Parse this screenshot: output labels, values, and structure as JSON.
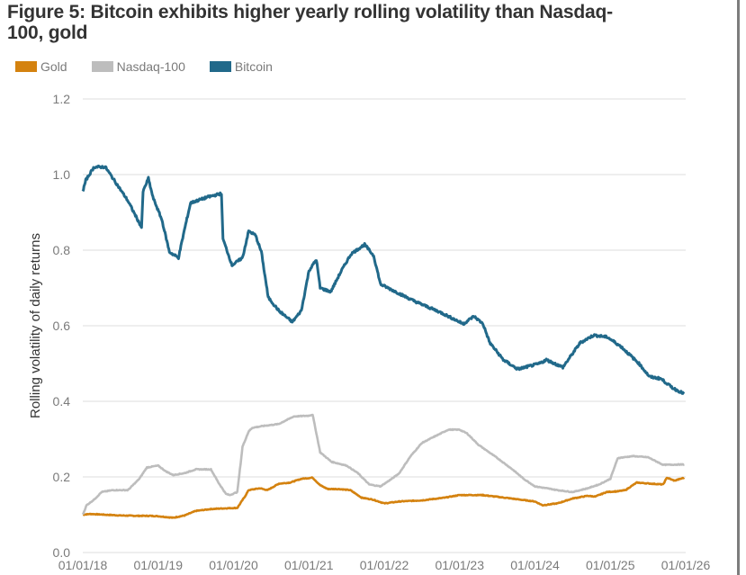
{
  "title": "Figure 5: Bitcoin exhibits higher yearly rolling volatility than Nasdaq-100, gold",
  "title_lines": [
    "Figure 5: Bitcoin exhibits higher yearly rolling volatility than Nasdaq-",
    "100, gold"
  ],
  "legend": [
    {
      "label": "Gold",
      "color": "#d4820f"
    },
    {
      "label": "Nasdaq-100",
      "color": "#bdbdbd"
    },
    {
      "label": "Bitcoin",
      "color": "#21698a"
    }
  ],
  "chart_data": {
    "type": "line",
    "title": "Figure 5: Bitcoin exhibits higher yearly rolling volatility than Nasdaq-100, gold",
    "xlabel": "",
    "ylabel": "Rolling volatility of daily returns",
    "ylim": [
      0.0,
      1.2
    ],
    "xlim": [
      2018.0,
      2026.0
    ],
    "grid": true,
    "legend_position": "top-left",
    "y_ticks": [
      "0.0",
      "0.2",
      "0.4",
      "0.6",
      "0.8",
      "1.0",
      "1.2"
    ],
    "y_tick_values": [
      0.0,
      0.2,
      0.4,
      0.6,
      0.8,
      1.0,
      1.2
    ],
    "x_ticks": [
      "01/01/18",
      "01/01/19",
      "01/01/20",
      "01/01/21",
      "01/01/22",
      "01/01/23",
      "01/01/24",
      "01/01/25",
      "01/01/26"
    ],
    "x_tick_values": [
      2018,
      2019,
      2020,
      2021,
      2022,
      2023,
      2024,
      2025,
      2026
    ],
    "series": [
      {
        "name": "Gold",
        "color": "#d4820f",
        "x": [
          2018.0,
          2018.1,
          2018.3,
          2018.5,
          2018.7,
          2018.9,
          2019.0,
          2019.2,
          2019.35,
          2019.5,
          2019.7,
          2019.9,
          2020.05,
          2020.15,
          2020.2,
          2020.35,
          2020.45,
          2020.6,
          2020.75,
          2020.9,
          2021.05,
          2021.15,
          2021.25,
          2021.4,
          2021.55,
          2021.7,
          2021.85,
          2022.0,
          2022.2,
          2022.5,
          2022.8,
          2023.0,
          2023.3,
          2023.6,
          2023.8,
          2024.0,
          2024.1,
          2024.3,
          2024.5,
          2024.7,
          2024.8,
          2024.95,
          2025.1,
          2025.2,
          2025.35,
          2025.55,
          2025.7,
          2025.75,
          2025.85,
          2025.98
        ],
        "values": [
          0.1,
          0.102,
          0.1,
          0.098,
          0.097,
          0.097,
          0.096,
          0.092,
          0.098,
          0.11,
          0.115,
          0.117,
          0.118,
          0.148,
          0.165,
          0.17,
          0.165,
          0.182,
          0.185,
          0.195,
          0.198,
          0.178,
          0.168,
          0.168,
          0.165,
          0.145,
          0.14,
          0.13,
          0.135,
          0.138,
          0.145,
          0.152,
          0.152,
          0.145,
          0.14,
          0.135,
          0.125,
          0.13,
          0.143,
          0.15,
          0.148,
          0.16,
          0.162,
          0.165,
          0.185,
          0.182,
          0.18,
          0.198,
          0.19,
          0.198
        ]
      },
      {
        "name": "Nasdaq-100",
        "color": "#bdbdbd",
        "x": [
          2018.0,
          2018.05,
          2018.15,
          2018.25,
          2018.4,
          2018.6,
          2018.75,
          2018.85,
          2019.0,
          2019.1,
          2019.2,
          2019.35,
          2019.5,
          2019.7,
          2019.8,
          2019.9,
          2019.95,
          2020.05,
          2020.12,
          2020.2,
          2020.25,
          2020.4,
          2020.6,
          2020.8,
          2021.0,
          2021.05,
          2021.15,
          2021.3,
          2021.5,
          2021.65,
          2021.8,
          2021.95,
          2022.1,
          2022.2,
          2022.35,
          2022.5,
          2022.7,
          2022.85,
          2023.0,
          2023.1,
          2023.25,
          2023.5,
          2023.7,
          2023.85,
          2024.0,
          2024.15,
          2024.3,
          2024.5,
          2024.7,
          2024.85,
          2024.95,
          2025.0,
          2025.1,
          2025.3,
          2025.5,
          2025.7,
          2025.98
        ],
        "values": [
          0.1,
          0.125,
          0.14,
          0.16,
          0.165,
          0.165,
          0.195,
          0.225,
          0.23,
          0.215,
          0.205,
          0.21,
          0.22,
          0.22,
          0.185,
          0.155,
          0.152,
          0.16,
          0.28,
          0.32,
          0.33,
          0.335,
          0.34,
          0.36,
          0.362,
          0.365,
          0.265,
          0.24,
          0.23,
          0.21,
          0.18,
          0.175,
          0.195,
          0.21,
          0.255,
          0.29,
          0.31,
          0.325,
          0.325,
          0.315,
          0.285,
          0.25,
          0.22,
          0.195,
          0.175,
          0.17,
          0.165,
          0.16,
          0.17,
          0.18,
          0.19,
          0.195,
          0.25,
          0.255,
          0.252,
          0.232,
          0.233
        ]
      },
      {
        "name": "Bitcoin",
        "color": "#21698a",
        "x": [
          2018.0,
          2018.04,
          2018.15,
          2018.3,
          2018.45,
          2018.6,
          2018.78,
          2018.8,
          2018.87,
          2018.93,
          2019.05,
          2019.15,
          2019.27,
          2019.35,
          2019.43,
          2019.65,
          2019.84,
          2019.86,
          2019.98,
          2020.12,
          2020.2,
          2020.29,
          2020.37,
          2020.46,
          2020.6,
          2020.78,
          2020.9,
          2021.0,
          2021.1,
          2021.15,
          2021.29,
          2021.43,
          2021.56,
          2021.74,
          2021.86,
          2021.95,
          2022.15,
          2022.4,
          2022.75,
          2023.05,
          2023.19,
          2023.31,
          2023.4,
          2023.58,
          2023.77,
          2024.06,
          2024.15,
          2024.37,
          2024.6,
          2024.78,
          2024.96,
          2025.14,
          2025.38,
          2025.52,
          2025.67,
          2025.83,
          2025.98
        ],
        "values": [
          0.955,
          0.985,
          1.02,
          1.02,
          0.975,
          0.93,
          0.86,
          0.955,
          0.99,
          0.94,
          0.88,
          0.795,
          0.78,
          0.855,
          0.925,
          0.94,
          0.95,
          0.83,
          0.76,
          0.78,
          0.85,
          0.84,
          0.795,
          0.675,
          0.64,
          0.61,
          0.64,
          0.745,
          0.775,
          0.7,
          0.69,
          0.745,
          0.79,
          0.815,
          0.785,
          0.71,
          0.69,
          0.665,
          0.635,
          0.605,
          0.625,
          0.605,
          0.555,
          0.51,
          0.485,
          0.5,
          0.51,
          0.49,
          0.555,
          0.575,
          0.57,
          0.545,
          0.5,
          0.465,
          0.46,
          0.435,
          0.42
        ]
      }
    ]
  }
}
